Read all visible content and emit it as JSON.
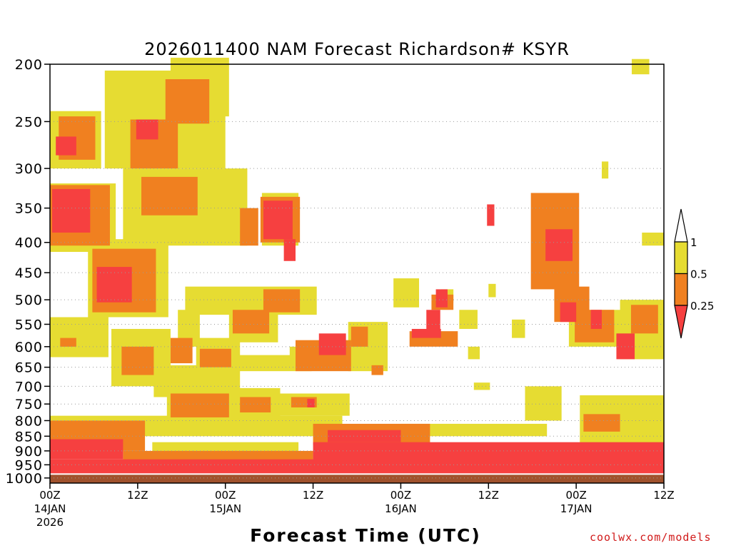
{
  "chart_data": {
    "type": "heatmap",
    "title": "2026011400 NAM Forecast Richardson# KSYR",
    "xlabel": "Forecast Time (UTC)",
    "ylabel": "",
    "x_range_hours": [
      0,
      84
    ],
    "y_scale": "log-pressure",
    "ylim_hPa": [
      1020,
      200
    ],
    "x_ticks": [
      {
        "hour": 0,
        "label": "00Z",
        "date": "14JAN",
        "year": "2026"
      },
      {
        "hour": 12,
        "label": "12Z",
        "date": "",
        "year": ""
      },
      {
        "hour": 24,
        "label": "00Z",
        "date": "15JAN",
        "year": ""
      },
      {
        "hour": 36,
        "label": "12Z",
        "date": "",
        "year": ""
      },
      {
        "hour": 48,
        "label": "00Z",
        "date": "16JAN",
        "year": ""
      },
      {
        "hour": 60,
        "label": "12Z",
        "date": "",
        "year": ""
      },
      {
        "hour": 72,
        "label": "00Z",
        "date": "17JAN",
        "year": ""
      },
      {
        "hour": 84,
        "label": "12Z",
        "date": "",
        "year": ""
      }
    ],
    "y_ticks": [
      200,
      250,
      300,
      350,
      400,
      450,
      500,
      550,
      600,
      650,
      700,
      750,
      800,
      850,
      900,
      950,
      1000
    ],
    "grid": "dotted horizontal",
    "legend": {
      "placement": "right",
      "levels": [
        {
          "label": "0.25",
          "color": "#f64040",
          "range": [
            0,
            0.25
          ]
        },
        {
          "label": "0.5",
          "color": "#f08020",
          "range": [
            0.25,
            0.5
          ]
        },
        {
          "label": "1",
          "color": "#e6dc32",
          "range": [
            0.5,
            1
          ]
        }
      ]
    },
    "ground_color": "#a0522d",
    "surface_pressure_hPa": 985,
    "regions": [
      {
        "level": 1,
        "h0": 0,
        "h1": 7,
        "p_top": 240,
        "p_bot": 300
      },
      {
        "level": 2,
        "h0": 1.2,
        "h1": 6.2,
        "p_top": 245,
        "p_bot": 290
      },
      {
        "level": 3,
        "h0": 0.8,
        "h1": 3.6,
        "p_top": 265,
        "p_bot": 285
      },
      {
        "level": 1,
        "h0": 0,
        "h1": 9,
        "p_top": 318,
        "p_bot": 415
      },
      {
        "level": 2,
        "h0": 0,
        "h1": 8.2,
        "p_top": 320,
        "p_bot": 405
      },
      {
        "level": 3,
        "h0": 0.3,
        "h1": 5.5,
        "p_top": 325,
        "p_bot": 385
      },
      {
        "level": 1,
        "h0": 5.2,
        "h1": 16.2,
        "p_top": 395,
        "p_bot": 535
      },
      {
        "level": 2,
        "h0": 5.8,
        "h1": 14.5,
        "p_top": 410,
        "p_bot": 525
      },
      {
        "level": 3,
        "h0": 6.4,
        "h1": 11.2,
        "p_top": 440,
        "p_bot": 505
      },
      {
        "level": 1,
        "h0": 7.5,
        "h1": 24,
        "p_top": 205,
        "p_bot": 300
      },
      {
        "level": 1,
        "h0": 16.5,
        "h1": 24.5,
        "p_top": 195,
        "p_bot": 245
      },
      {
        "level": 2,
        "h0": 15.8,
        "h1": 21.8,
        "p_top": 212,
        "p_bot": 252
      },
      {
        "level": 2,
        "h0": 11,
        "h1": 17.5,
        "p_top": 248,
        "p_bot": 300
      },
      {
        "level": 3,
        "h0": 11.8,
        "h1": 14.8,
        "p_top": 248,
        "p_bot": 268
      },
      {
        "level": 1,
        "h0": 10,
        "h1": 27,
        "p_top": 300,
        "p_bot": 405
      },
      {
        "level": 2,
        "h0": 12.5,
        "h1": 20.2,
        "p_top": 310,
        "p_bot": 360
      },
      {
        "level": 2,
        "h0": 26,
        "h1": 28.5,
        "p_top": 350,
        "p_bot": 405
      },
      {
        "level": 1,
        "h0": 29,
        "h1": 34,
        "p_top": 330,
        "p_bot": 405
      },
      {
        "level": 2,
        "h0": 28.8,
        "h1": 34.2,
        "p_top": 335,
        "p_bot": 400
      },
      {
        "level": 3,
        "h0": 29.2,
        "h1": 33.2,
        "p_top": 340,
        "p_bot": 395
      },
      {
        "level": 3,
        "h0": 32,
        "h1": 33.6,
        "p_top": 395,
        "p_bot": 430
      },
      {
        "level": 1,
        "h0": 18.5,
        "h1": 36.5,
        "p_top": 475,
        "p_bot": 530
      },
      {
        "level": 2,
        "h0": 29.2,
        "h1": 34.2,
        "p_top": 480,
        "p_bot": 525
      },
      {
        "level": 2,
        "h0": 25,
        "h1": 30,
        "p_top": 520,
        "p_bot": 570
      },
      {
        "level": 1,
        "h0": 24.5,
        "h1": 31.2,
        "p_top": 515,
        "p_bot": 590
      },
      {
        "level": 1,
        "h0": 20,
        "h1": 26,
        "p_top": 580,
        "p_bot": 720
      },
      {
        "level": 2,
        "h0": 20.5,
        "h1": 24.8,
        "p_top": 605,
        "p_bot": 650
      },
      {
        "level": 1,
        "h0": 17.5,
        "h1": 20.5,
        "p_top": 520,
        "p_bot": 600
      },
      {
        "level": 2,
        "h0": 16.5,
        "h1": 19.5,
        "p_top": 580,
        "p_bot": 640
      },
      {
        "level": 1,
        "h0": 0,
        "h1": 8,
        "p_top": 535,
        "p_bot": 625
      },
      {
        "level": 2,
        "h0": 1.4,
        "h1": 3.6,
        "p_top": 580,
        "p_bot": 600
      },
      {
        "level": 1,
        "h0": 8.4,
        "h1": 16.5,
        "p_top": 560,
        "p_bot": 700
      },
      {
        "level": 2,
        "h0": 9.8,
        "h1": 14.2,
        "p_top": 600,
        "p_bot": 670
      },
      {
        "level": 1,
        "h0": 14.2,
        "h1": 22.5,
        "p_top": 645,
        "p_bot": 730
      },
      {
        "level": 1,
        "h0": 24.5,
        "h1": 35.8,
        "p_top": 620,
        "p_bot": 660
      },
      {
        "level": 1,
        "h0": 16,
        "h1": 31.5,
        "p_top": 705,
        "p_bot": 800
      },
      {
        "level": 2,
        "h0": 16.5,
        "h1": 24.5,
        "p_top": 720,
        "p_bot": 790
      },
      {
        "level": 2,
        "h0": 26,
        "h1": 30.2,
        "p_top": 730,
        "p_bot": 775
      },
      {
        "level": 1,
        "h0": 32.8,
        "h1": 41,
        "p_top": 600,
        "p_bot": 650
      },
      {
        "level": 2,
        "h0": 33.6,
        "h1": 41.2,
        "p_top": 585,
        "p_bot": 660
      },
      {
        "level": 3,
        "h0": 36.8,
        "h1": 40.5,
        "p_top": 570,
        "p_bot": 620
      },
      {
        "level": 2,
        "h0": 37.2,
        "h1": 40.2,
        "p_top": 620,
        "p_bot": 650
      },
      {
        "level": 1,
        "h0": 40.8,
        "h1": 46.2,
        "p_top": 545,
        "p_bot": 660
      },
      {
        "level": 2,
        "h0": 41.2,
        "h1": 43.5,
        "p_top": 555,
        "p_bot": 600
      },
      {
        "level": 2,
        "h0": 44,
        "h1": 45.6,
        "p_top": 645,
        "p_bot": 670
      },
      {
        "level": 1,
        "h0": 31.5,
        "h1": 41,
        "p_top": 720,
        "p_bot": 785
      },
      {
        "level": 2,
        "h0": 33,
        "h1": 36.5,
        "p_top": 730,
        "p_bot": 760
      },
      {
        "level": 3,
        "h0": 35.2,
        "h1": 36.2,
        "p_top": 735,
        "p_bot": 760
      },
      {
        "level": 1,
        "h0": 47,
        "h1": 50.5,
        "p_top": 460,
        "p_bot": 515
      },
      {
        "level": 1,
        "h0": 56,
        "h1": 58.5,
        "p_top": 520,
        "p_bot": 560
      },
      {
        "level": 1,
        "h0": 53.5,
        "h1": 55.2,
        "p_top": 480,
        "p_bot": 505
      },
      {
        "level": 2,
        "h0": 52.2,
        "h1": 55.2,
        "p_top": 490,
        "p_bot": 520
      },
      {
        "level": 3,
        "h0": 52.8,
        "h1": 54.4,
        "p_top": 480,
        "p_bot": 515
      },
      {
        "level": 3,
        "h0": 49.5,
        "h1": 53.5,
        "p_top": 560,
        "p_bot": 580
      },
      {
        "level": 2,
        "h0": 49.2,
        "h1": 55.8,
        "p_top": 565,
        "p_bot": 600
      },
      {
        "level": 3,
        "h0": 51.5,
        "h1": 53.4,
        "p_top": 520,
        "p_bot": 565
      },
      {
        "level": 1,
        "h0": 57.2,
        "h1": 58.8,
        "p_top": 600,
        "p_bot": 630
      },
      {
        "level": 1,
        "h0": 58,
        "h1": 60.2,
        "p_top": 690,
        "p_bot": 710
      },
      {
        "level": 1,
        "h0": 63.2,
        "h1": 65,
        "p_top": 540,
        "p_bot": 580
      },
      {
        "level": 1,
        "h0": 60,
        "h1": 61,
        "p_top": 470,
        "p_bot": 495
      },
      {
        "level": 3,
        "h0": 59.8,
        "h1": 60.8,
        "p_top": 345,
        "p_bot": 375
      },
      {
        "level": 2,
        "h0": 65.8,
        "h1": 72.4,
        "p_top": 330,
        "p_bot": 480
      },
      {
        "level": 3,
        "h0": 67.8,
        "h1": 71.5,
        "p_top": 380,
        "p_bot": 430
      },
      {
        "level": 1,
        "h0": 68,
        "h1": 71.5,
        "p_top": 360,
        "p_bot": 425
      },
      {
        "level": 2,
        "h0": 69,
        "h1": 73.8,
        "p_top": 475,
        "p_bot": 545
      },
      {
        "level": 3,
        "h0": 69.8,
        "h1": 72,
        "p_top": 505,
        "p_bot": 545
      },
      {
        "level": 1,
        "h0": 71,
        "h1": 80,
        "p_top": 520,
        "p_bot": 600
      },
      {
        "level": 2,
        "h0": 71.8,
        "h1": 77.2,
        "p_top": 520,
        "p_bot": 590
      },
      {
        "level": 3,
        "h0": 74,
        "h1": 75.5,
        "p_top": 520,
        "p_bot": 560
      },
      {
        "level": 1,
        "h0": 78,
        "h1": 84,
        "p_top": 500,
        "p_bot": 630
      },
      {
        "level": 2,
        "h0": 79.5,
        "h1": 83.2,
        "p_top": 510,
        "p_bot": 570
      },
      {
        "level": 3,
        "h0": 77.5,
        "h1": 80,
        "p_top": 570,
        "p_bot": 630
      },
      {
        "level": 1,
        "h0": 79.6,
        "h1": 82,
        "p_top": 196,
        "p_bot": 208
      },
      {
        "level": 1,
        "h0": 75.5,
        "h1": 76.4,
        "p_top": 292,
        "p_bot": 312
      },
      {
        "level": 1,
        "h0": 81,
        "h1": 84,
        "p_top": 385,
        "p_bot": 405
      },
      {
        "level": 1,
        "h0": 65,
        "h1": 70,
        "p_top": 700,
        "p_bot": 800
      },
      {
        "level": 2,
        "h0": 73,
        "h1": 78,
        "p_top": 780,
        "p_bot": 835
      },
      {
        "level": 1,
        "h0": 72.5,
        "h1": 84,
        "p_top": 725,
        "p_bot": 880
      },
      {
        "level": 1,
        "h0": 0,
        "h1": 40,
        "p_top": 785,
        "p_bot": 850
      },
      {
        "level": 2,
        "h0": 0,
        "h1": 13,
        "p_top": 800,
        "p_bot": 900
      },
      {
        "level": 2,
        "h0": 36,
        "h1": 52,
        "p_top": 810,
        "p_bot": 880
      },
      {
        "level": 1,
        "h0": 48,
        "h1": 68,
        "p_top": 810,
        "p_bot": 850
      },
      {
        "level": 3,
        "h0": 0,
        "h1": 84,
        "p_top": 930,
        "p_bot": 985
      },
      {
        "level": 3,
        "h0": 36,
        "h1": 84,
        "p_top": 870,
        "p_bot": 935
      },
      {
        "level": 3,
        "h0": 0,
        "h1": 10,
        "p_top": 860,
        "p_bot": 930
      },
      {
        "level": 3,
        "h0": 38,
        "h1": 48,
        "p_top": 830,
        "p_bot": 870
      },
      {
        "level": 2,
        "h0": 10,
        "h1": 36,
        "p_top": 900,
        "p_bot": 935
      },
      {
        "level": 1,
        "h0": 14,
        "h1": 34,
        "p_top": 870,
        "p_bot": 905
      }
    ]
  },
  "credit": "coolwx.com/models"
}
